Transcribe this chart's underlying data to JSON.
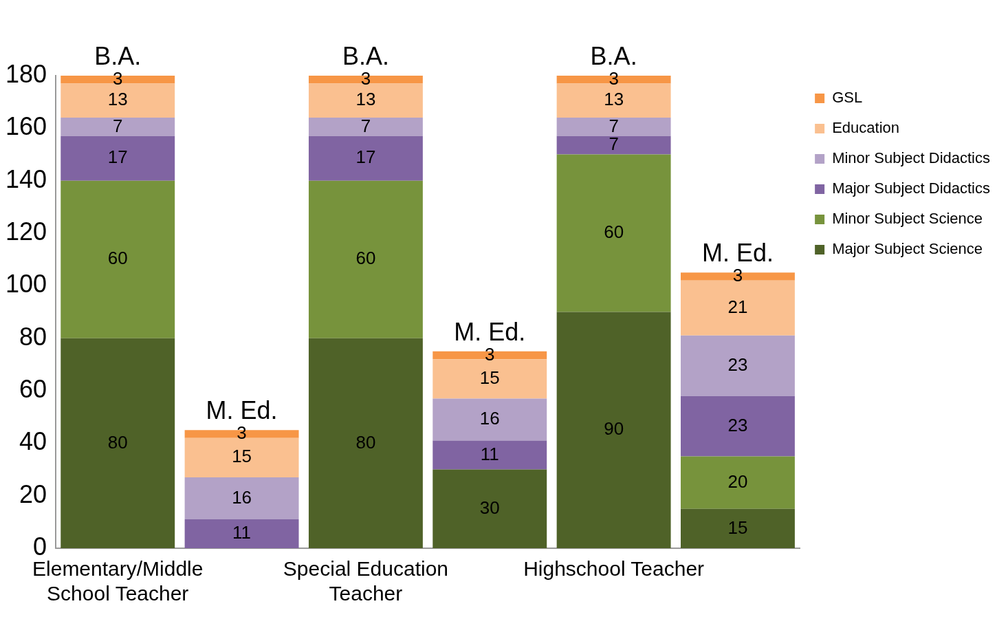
{
  "chart_data": {
    "type": "bar",
    "stacked": true,
    "data_labels": true,
    "grid": false,
    "legend": "top right",
    "categories": [
      "Elementary/Middle School Teacher",
      null,
      "Special Education Teacher",
      null,
      "Highschool Teacher",
      null
    ],
    "series": [
      {
        "name": "Major Subject Science",
        "color": "#4f6228",
        "values": [
          80,
          null,
          80,
          30,
          90,
          15
        ]
      },
      {
        "name": "Minor Subject Science",
        "color": "#77933c",
        "values": [
          60,
          null,
          60,
          null,
          60,
          20
        ]
      },
      {
        "name": "Major Subject Didactics",
        "color": "#8064a2",
        "values": [
          17,
          11,
          17,
          11,
          7,
          23
        ]
      },
      {
        "name": "Minor Subject Didactics",
        "color": "#b3a2c7",
        "values": [
          7,
          16,
          7,
          16,
          7,
          23
        ]
      },
      {
        "name": "Education",
        "color": "#fac090",
        "values": [
          13,
          15,
          13,
          15,
          13,
          21
        ]
      },
      {
        "name": "GSL",
        "color": "#f79646",
        "values": [
          3,
          3,
          3,
          3,
          3,
          3
        ]
      }
    ],
    "ylim": [
      0,
      180
    ],
    "yticks": [
      0,
      20,
      40,
      60,
      80,
      100,
      120,
      140,
      160,
      180
    ],
    "annotations": [
      {
        "text": "B.A.",
        "y": 180
      },
      {
        "text": "M. Ed.",
        "y": 45
      },
      {
        "text": "B.A.",
        "y": 180
      },
      {
        "text": "M. Ed.",
        "y": 75
      },
      {
        "text": "B.A.",
        "y": 180
      },
      {
        "text": "M. Ed.",
        "y": 105
      }
    ]
  }
}
